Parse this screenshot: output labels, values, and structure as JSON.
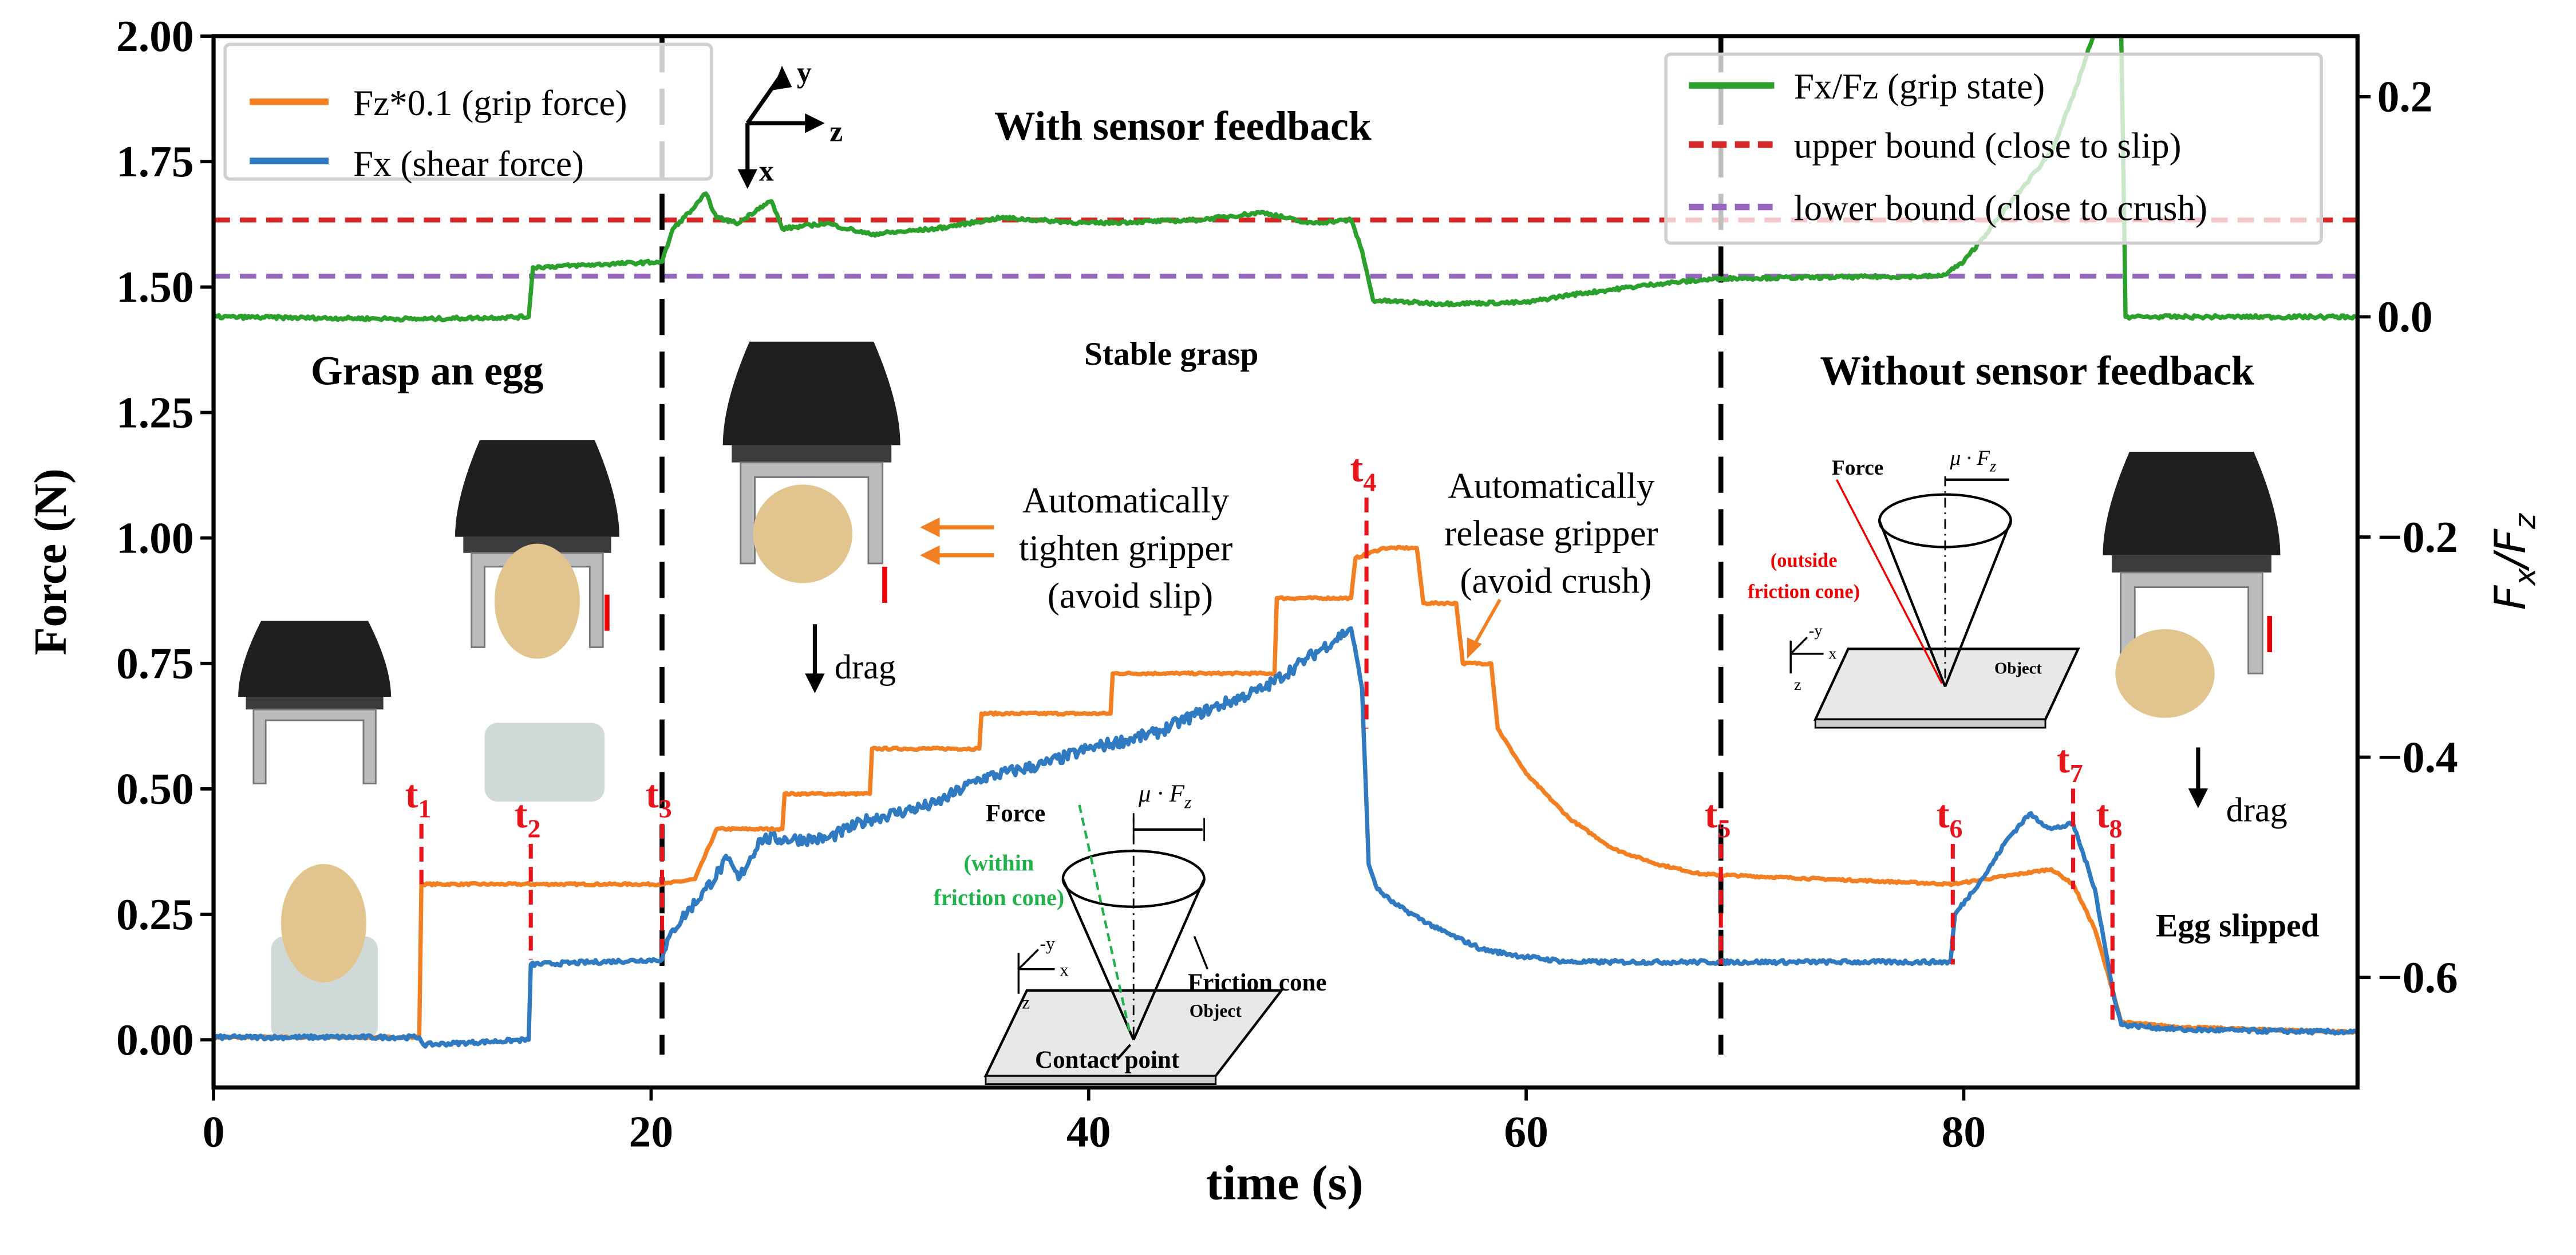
{
  "chart_data": {
    "type": "line",
    "xlabel": "time (s)",
    "ylabel_left": "Force (N)",
    "ylabel_right": {
      "main": "F",
      "sub1": "x",
      "sep": "/",
      "main2": "F",
      "sub2": "z"
    },
    "xlim": [
      0,
      98
    ],
    "ylim_left": [
      -0.095,
      2.0
    ],
    "ylim_right": [
      -0.7,
      0.255
    ],
    "grid": false,
    "xticks": [
      "0",
      "20",
      "40",
      "60",
      "80"
    ],
    "yticks_left": [
      "0.00",
      "0.25",
      "0.50",
      "0.75",
      "1.00",
      "1.25",
      "1.50",
      "1.75",
      "2.00"
    ],
    "yticks_right": [
      "−0.6",
      "−0.4",
      "−0.2",
      "0.0",
      "0.2"
    ],
    "series": [
      {
        "name": "Fz*0.1 (grip force)",
        "axis": "left",
        "color": "#f28022",
        "x": [
          0,
          9.4,
          9.5,
          20.5,
          22,
          23,
          26,
          26.1,
          30,
          30.1,
          35,
          35.1,
          41,
          41.1,
          48.5,
          48.6,
          52,
          52.2,
          53.5,
          55,
          55.3,
          56.8,
          57.1,
          58.4,
          58.7,
          60,
          62,
          64,
          66,
          68,
          79.5,
          81,
          84,
          85,
          86,
          86.8,
          87.2,
          90,
          98
        ],
        "y": [
          0.005,
          0.005,
          0.31,
          0.31,
          0.32,
          0.42,
          0.42,
          0.49,
          0.49,
          0.58,
          0.58,
          0.65,
          0.65,
          0.73,
          0.73,
          0.88,
          0.88,
          0.96,
          0.98,
          0.98,
          0.87,
          0.87,
          0.75,
          0.75,
          0.62,
          0.53,
          0.44,
          0.38,
          0.35,
          0.33,
          0.31,
          0.32,
          0.34,
          0.31,
          0.22,
          0.1,
          0.035,
          0.025,
          0.015
        ]
      },
      {
        "name": "Fx (shear force)",
        "axis": "left",
        "color": "#2f7ac0",
        "x": [
          0,
          9.4,
          9.6,
          14.4,
          14.5,
          20.5,
          21,
          22.5,
          23.5,
          24,
          25,
          28,
          30,
          33,
          35,
          38,
          40,
          43,
          45,
          48,
          50,
          52,
          52.5,
          52.8,
          53.2,
          54,
          56,
          58,
          60,
          62,
          79.4,
          79.6,
          81,
          82,
          83,
          84,
          85,
          86,
          86.8,
          87.2,
          90,
          98
        ],
        "y": [
          0.005,
          0.005,
          -0.01,
          0.0,
          0.15,
          0.16,
          0.22,
          0.3,
          0.36,
          0.32,
          0.4,
          0.4,
          0.44,
          0.47,
          0.52,
          0.55,
          0.58,
          0.61,
          0.65,
          0.7,
          0.76,
          0.82,
          0.7,
          0.35,
          0.3,
          0.27,
          0.22,
          0.18,
          0.165,
          0.155,
          0.155,
          0.25,
          0.33,
          0.4,
          0.45,
          0.42,
          0.43,
          0.3,
          0.1,
          0.03,
          0.02,
          0.015
        ]
      },
      {
        "name": "Fx/Fz (grip state)",
        "axis": "right",
        "color": "#2ca02c",
        "x": [
          0,
          9.5,
          14.4,
          14.6,
          20.5,
          21,
          22,
          22.5,
          23,
          24,
          25,
          25.5,
          26,
          28,
          30,
          33,
          36,
          40,
          45,
          48,
          50,
          52,
          52.5,
          53,
          56,
          60,
          62,
          66,
          69,
          79,
          80,
          82,
          84,
          85,
          86,
          87.2,
          87.4,
          98
        ],
        "y": [
          0.0,
          -0.002,
          0.0,
          0.045,
          0.05,
          0.08,
          0.1,
          0.112,
          0.09,
          0.085,
          0.1,
          0.105,
          0.08,
          0.085,
          0.075,
          0.08,
          0.09,
          0.085,
          0.088,
          0.095,
          0.085,
          0.088,
          0.06,
          0.015,
          0.012,
          0.013,
          0.02,
          0.03,
          0.035,
          0.037,
          0.05,
          0.1,
          0.15,
          0.2,
          0.26,
          0.26,
          0.0,
          0.0
        ]
      }
    ],
    "reference_lines": [
      {
        "name": "upper bound (close to slip)",
        "axis": "right",
        "y": 0.088,
        "color": "#d62728",
        "style": "dashed"
      },
      {
        "name": "lower bound (close to crush)",
        "axis": "right",
        "y": 0.037,
        "color": "#9467bd",
        "style": "dashed"
      }
    ],
    "phase_dividers": [
      20.5,
      68.9
    ],
    "event_markers": [
      {
        "label": "t",
        "sub": "1",
        "x": 9.5,
        "y_top": 0.45,
        "y_bottom": 0.31
      },
      {
        "label": "t",
        "sub": "2",
        "x": 14.5,
        "y_top": 0.41,
        "y_bottom": 0.16
      },
      {
        "label": "t",
        "sub": "3",
        "x": 20.5,
        "y_top": 0.45,
        "y_bottom": 0.16
      },
      {
        "label": "t",
        "sub": "4",
        "x": 52.7,
        "y_top": 1.1,
        "y_bottom": 0.62
      },
      {
        "label": "t",
        "sub": "5",
        "x": 68.9,
        "y_top": 0.41,
        "y_bottom": 0.15
      },
      {
        "label": "t",
        "sub": "6",
        "x": 79.5,
        "y_top": 0.41,
        "y_bottom": 0.15
      },
      {
        "label": "t",
        "sub": "7",
        "x": 85.0,
        "y_top": 0.52,
        "y_bottom": 0.3
      },
      {
        "label": "t",
        "sub": "8",
        "x": 86.8,
        "y_top": 0.41,
        "y_bottom": 0.03
      }
    ],
    "legend_left": [
      "Fz*0.1 (grip force)",
      "Fx (shear force)"
    ],
    "legend_right": [
      "Fx/Fz (grip state)",
      "upper bound (close to slip)",
      "lower bound (close to crush)"
    ],
    "legend_placement": [
      "top-left",
      "top-right"
    ]
  },
  "annotations": {
    "with_feedback": "With sensor feedback",
    "without_feedback": "Without sensor feedback",
    "grasp_egg": "Grasp an egg",
    "stable_grasp": "Stable grasp",
    "tighten": [
      "Automatically",
      "tighten gripper",
      "(avoid slip)"
    ],
    "release": [
      "Automatically",
      "release gripper",
      "(avoid crush)"
    ],
    "drag": "drag",
    "egg_slipped": "Egg slipped",
    "axes_frame": {
      "y": "y",
      "z": "z",
      "x": "x"
    },
    "cone_left": {
      "force": "Force",
      "mu": "μ · F",
      "mu_sub": "z",
      "within": [
        "(within",
        "friction cone)"
      ],
      "friction_cone": "Friction cone",
      "object": "Object",
      "contact": "Contact point",
      "neg_y": "-y",
      "x": "x",
      "z": "z"
    },
    "cone_right": {
      "force": "Force",
      "mu": "μ · F",
      "mu_sub": "z",
      "outside": [
        "(outside",
        "friction cone)"
      ],
      "object": "Object",
      "neg_y": "-y",
      "x": "x",
      "z": "z"
    }
  }
}
